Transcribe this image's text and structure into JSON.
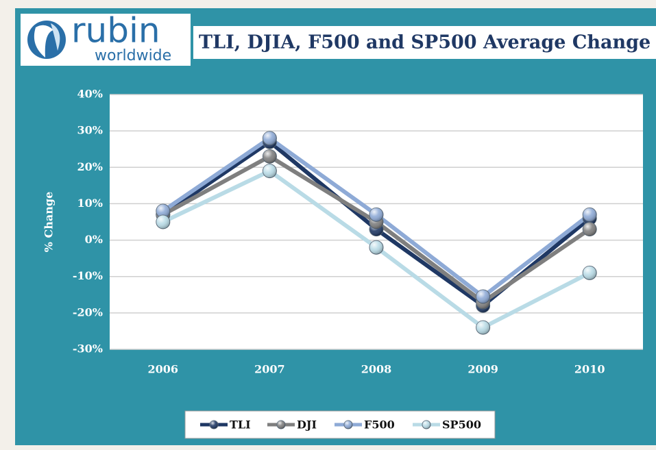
{
  "logo": {
    "brand": "rubin",
    "sub": "worldwide"
  },
  "chart_data": {
    "type": "line",
    "title": "TLI, DJIA, F500 and SP500 Average Change",
    "y_label": "% Change",
    "categories": [
      "2006",
      "2007",
      "2008",
      "2009",
      "2010"
    ],
    "series": [
      {
        "name": "TLI",
        "color": "#1f3864",
        "values": [
          7,
          27,
          3,
          -18,
          6
        ]
      },
      {
        "name": "DJI",
        "color": "#7f7f7f",
        "values": [
          7,
          23,
          5,
          -17,
          3
        ]
      },
      {
        "name": "F500",
        "color": "#8eaad6",
        "values": [
          8,
          28,
          7,
          -15.5,
          7
        ]
      },
      {
        "name": "SP500",
        "color": "#b9dbe6",
        "values": [
          5,
          19,
          -2,
          -24,
          -9
        ]
      }
    ],
    "ylim": [
      -30,
      40
    ],
    "yticks": [
      {
        "value": -30,
        "label": "-30%"
      },
      {
        "value": -20,
        "label": "-20%"
      },
      {
        "value": -10,
        "label": "-10%"
      },
      {
        "value": 0,
        "label": "0%"
      },
      {
        "value": 10,
        "label": "10%"
      },
      {
        "value": 20,
        "label": "20%"
      },
      {
        "value": 30,
        "label": "30%"
      },
      {
        "value": 40,
        "label": "40%"
      }
    ],
    "grid": true,
    "legend": "bottom"
  }
}
